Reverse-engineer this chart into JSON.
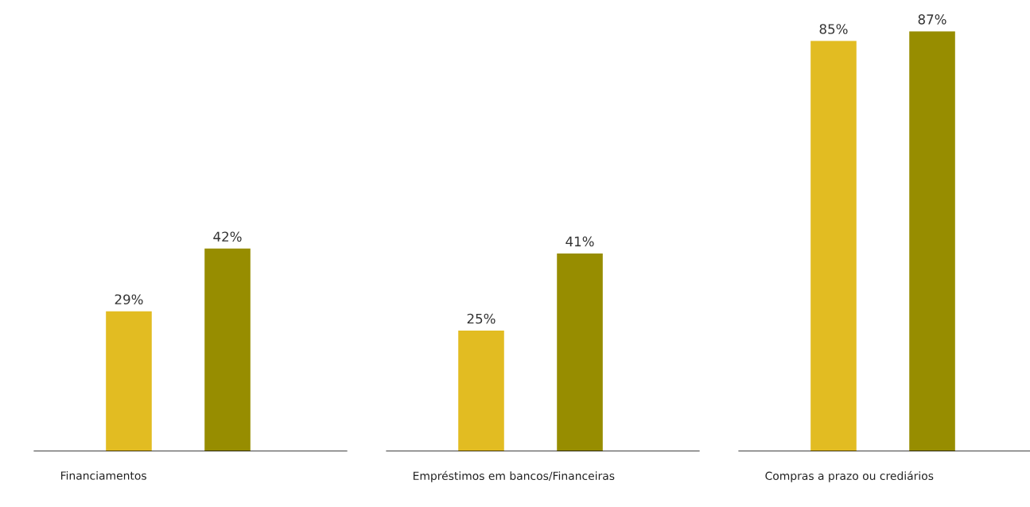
{
  "chart_data": {
    "type": "bar",
    "categories": [
      "Financiamentos",
      "Empréstimos em bancos/Financeiras",
      "Compras a prazo ou crediários"
    ],
    "series": [
      {
        "color": "#e2bc22",
        "values": [
          29,
          25,
          85
        ],
        "value_labels": [
          "29%",
          "25%",
          "85%"
        ]
      },
      {
        "color": "#978d00",
        "values": [
          42,
          41,
          87
        ],
        "value_labels": [
          "42%",
          "41%",
          "87%"
        ]
      }
    ]
  }
}
